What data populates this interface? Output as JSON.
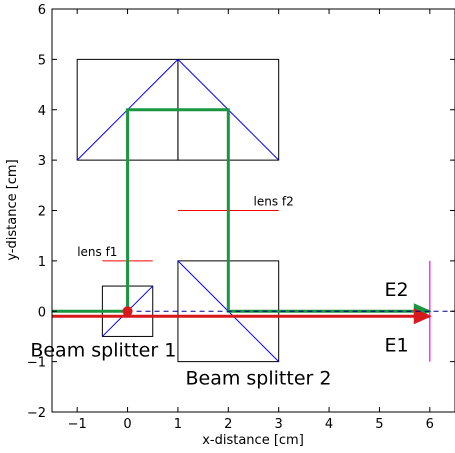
{
  "chart_data": {
    "type": "scatter",
    "title": "",
    "xlabel": "x-distance [cm]",
    "ylabel": "y-distance [cm]",
    "xlim": [
      -1.5,
      6.5
    ],
    "ylim": [
      -2,
      6
    ],
    "xticks": [
      -1,
      0,
      1,
      2,
      3,
      4,
      5,
      6
    ],
    "yticks": [
      -2,
      -1,
      0,
      1,
      2,
      3,
      4,
      5,
      6
    ],
    "grid": false,
    "boxes": [
      {
        "name": "upper-box-left",
        "x0": -1,
        "y0": 3,
        "x1": 1,
        "y1": 5
      },
      {
        "name": "upper-box-right",
        "x0": 1,
        "y0": 3,
        "x1": 3,
        "y1": 5
      },
      {
        "name": "beam-splitter-1-box",
        "x0": -0.5,
        "y0": -0.5,
        "x1": 0.5,
        "y1": 0.5
      },
      {
        "name": "beam-splitter-2-box",
        "x0": 1,
        "y0": -1,
        "x1": 3,
        "y1": 1
      }
    ],
    "mirror_lines": [
      {
        "name": "upper-diagonal-left",
        "x": [
          -1,
          1
        ],
        "y": [
          3,
          5
        ]
      },
      {
        "name": "upper-diagonal-right",
        "x": [
          1,
          3
        ],
        "y": [
          5,
          3
        ]
      },
      {
        "name": "splitter-1-diagonal",
        "x": [
          -0.5,
          0.5
        ],
        "y": [
          -0.5,
          0.5
        ]
      },
      {
        "name": "splitter-2-diagonal",
        "x": [
          1,
          3
        ],
        "y": [
          1,
          -1
        ]
      }
    ],
    "lenses": [
      {
        "name": "lens-f1",
        "x": [
          -0.5,
          0.5
        ],
        "y": [
          1,
          1
        ]
      },
      {
        "name": "lens-f2",
        "x": [
          1,
          3
        ],
        "y": [
          2,
          2
        ]
      }
    ],
    "beam_paths": [
      {
        "name": "E2-beam",
        "color": "#1a9641",
        "x": [
          -2,
          0,
          0,
          2,
          2,
          6
        ],
        "y": [
          0,
          0,
          4,
          4,
          0,
          0
        ]
      },
      {
        "name": "E1-beam",
        "color": "#d7191c",
        "x": [
          -2,
          6
        ],
        "y": [
          -0.1,
          -0.1
        ]
      }
    ],
    "dashed_line": {
      "name": "optical-axis",
      "x": [
        0,
        6.5
      ],
      "y": [
        0,
        0
      ]
    },
    "detector_line": {
      "name": "detector",
      "x": [
        6,
        6
      ],
      "y": [
        -1,
        1
      ]
    },
    "source_point": {
      "x": 0,
      "y": 0
    },
    "annotations": [
      {
        "name": "lens-f1-label",
        "text": "lens f1",
        "x": -1,
        "y": 1.1,
        "size": "small"
      },
      {
        "name": "lens-f2-label",
        "text": "lens f2",
        "x": 2.5,
        "y": 2.1,
        "size": "small"
      },
      {
        "name": "E2-label",
        "text": "E2",
        "x": 5.1,
        "y": 0.3,
        "size": "big",
        "color": "#1a9641"
      },
      {
        "name": "E1-label",
        "text": "E1",
        "x": 5.1,
        "y": -0.8,
        "size": "big",
        "color": "#d7191c"
      },
      {
        "name": "beam-splitter-1-label",
        "text": "Beam splitter 1",
        "x": -1.93,
        "y": -0.9,
        "size": "big"
      },
      {
        "name": "beam-splitter-2-label",
        "text": "Beam splitter 2",
        "x": 1.15,
        "y": -1.45,
        "size": "big"
      }
    ],
    "colors": {
      "frame": "#000000",
      "mirror": "#0000ff",
      "lens": "#ff0000",
      "detector": "#ff00ff",
      "dashed": "#00008b",
      "source": "#d7191c"
    }
  }
}
